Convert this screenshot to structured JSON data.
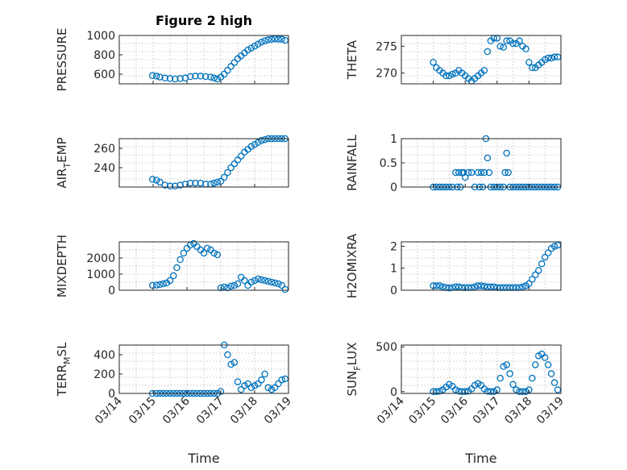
{
  "figure": {
    "title": "Figure 2 high"
  },
  "style": {
    "marker_color": "#0072BD"
  },
  "chart_data": [
    {
      "type": "scatter",
      "ylabel": "PRESSURE",
      "ylabel_sub": "",
      "ylim": [
        500,
        1000
      ],
      "yticks": [
        600,
        800,
        1000
      ],
      "ytick_labels": [
        "600",
        "800",
        "1000"
      ],
      "xlim": [
        0,
        5
      ],
      "xticks": [
        0,
        1,
        2,
        3,
        4,
        5
      ],
      "xtick_labels": [
        "03/14",
        "03/15",
        "03/16",
        "03/17",
        "03/18",
        "03/19"
      ],
      "xlabel": "",
      "grid": true,
      "x": [
        0.98,
        1.1,
        1.2,
        1.35,
        1.5,
        1.65,
        1.8,
        1.95,
        2.1,
        2.25,
        2.4,
        2.55,
        2.7,
        2.8,
        2.9,
        3.0,
        3.1,
        3.2,
        3.3,
        3.4,
        3.5,
        3.6,
        3.7,
        3.8,
        3.9,
        4.0,
        4.1,
        4.2,
        4.3,
        4.4,
        4.5,
        4.6,
        4.7,
        4.8,
        4.9
      ],
      "y": [
        585,
        580,
        570,
        560,
        555,
        550,
        555,
        560,
        575,
        580,
        580,
        575,
        570,
        560,
        550,
        570,
        600,
        640,
        680,
        720,
        760,
        790,
        820,
        850,
        870,
        890,
        910,
        930,
        945,
        955,
        960,
        965,
        960,
        960,
        950
      ]
    },
    {
      "type": "scatter",
      "ylabel": "AIR",
      "ylabel_sub": "T",
      "ylabel_rest": "EMP",
      "ylim": [
        220,
        270
      ],
      "yticks": [
        240,
        260
      ],
      "ytick_labels": [
        "240",
        "260"
      ],
      "xlim": [
        0,
        5
      ],
      "xticks": [
        0,
        1,
        2,
        3,
        4,
        5
      ],
      "xtick_labels": [
        "03/14",
        "03/15",
        "03/16",
        "03/17",
        "03/18",
        "03/19"
      ],
      "xlabel": "",
      "grid": true,
      "x": [
        0.98,
        1.1,
        1.2,
        1.35,
        1.5,
        1.65,
        1.8,
        1.95,
        2.1,
        2.25,
        2.4,
        2.55,
        2.7,
        2.8,
        2.9,
        3.0,
        3.1,
        3.2,
        3.3,
        3.4,
        3.5,
        3.6,
        3.7,
        3.8,
        3.9,
        4.0,
        4.1,
        4.2,
        4.3,
        4.4,
        4.5,
        4.6,
        4.7,
        4.8,
        4.9
      ],
      "y": [
        228,
        227,
        225,
        222,
        221,
        221,
        222,
        223,
        224,
        224,
        224,
        223,
        223,
        224,
        225,
        226,
        230,
        235,
        240,
        244,
        248,
        252,
        256,
        259,
        262,
        264,
        266,
        268,
        269,
        270,
        270,
        270,
        270,
        270,
        270
      ]
    },
    {
      "type": "scatter",
      "ylabel": "MIXDEPTH",
      "ylabel_sub": "",
      "ylim": [
        0,
        3000
      ],
      "yticks": [
        0,
        1000,
        2000
      ],
      "ytick_labels": [
        "0",
        "1000",
        "2000"
      ],
      "xlim": [
        0,
        5
      ],
      "xticks": [
        0,
        1,
        2,
        3,
        4,
        5
      ],
      "xtick_labels": [
        "03/14",
        "03/15",
        "03/16",
        "03/17",
        "03/18",
        "03/19"
      ],
      "xlabel": "",
      "grid": true,
      "x": [
        0.98,
        1.1,
        1.2,
        1.3,
        1.4,
        1.5,
        1.6,
        1.7,
        1.8,
        1.9,
        2.0,
        2.1,
        2.2,
        2.3,
        2.4,
        2.5,
        2.6,
        2.7,
        2.8,
        2.9,
        3.0,
        3.1,
        3.2,
        3.3,
        3.4,
        3.5,
        3.6,
        3.7,
        3.8,
        3.9,
        4.0,
        4.1,
        4.2,
        4.3,
        4.4,
        4.5,
        4.6,
        4.7,
        4.8,
        4.9
      ],
      "y": [
        300,
        320,
        350,
        400,
        450,
        600,
        900,
        1400,
        1900,
        2300,
        2600,
        2800,
        2900,
        2700,
        2500,
        2300,
        2600,
        2500,
        2300,
        2200,
        150,
        200,
        150,
        250,
        300,
        400,
        800,
        600,
        300,
        500,
        600,
        700,
        650,
        600,
        550,
        500,
        450,
        400,
        300,
        50
      ]
    },
    {
      "type": "scatter",
      "ylabel": "TERR",
      "ylabel_sub": "M",
      "ylabel_rest": "SL",
      "ylim": [
        0,
        500
      ],
      "yticks": [
        0,
        200,
        400
      ],
      "ytick_labels": [
        "0",
        "200",
        "400"
      ],
      "xlim": [
        0,
        5
      ],
      "xticks": [
        0,
        1,
        2,
        3,
        4,
        5
      ],
      "xtick_labels": [
        "03/14",
        "03/15",
        "03/16",
        "03/17",
        "03/18",
        "03/19"
      ],
      "xlabel": "Time",
      "grid": true,
      "x": [
        0.98,
        1.1,
        1.2,
        1.3,
        1.4,
        1.5,
        1.6,
        1.7,
        1.8,
        1.9,
        2.0,
        2.1,
        2.2,
        2.3,
        2.4,
        2.5,
        2.6,
        2.7,
        2.8,
        2.9,
        3.0,
        3.1,
        3.2,
        3.3,
        3.4,
        3.5,
        3.6,
        3.7,
        3.8,
        3.9,
        4.0,
        4.1,
        4.2,
        4.3,
        4.4,
        4.5,
        4.6,
        4.7,
        4.8,
        4.9
      ],
      "y": [
        0,
        0,
        0,
        0,
        0,
        0,
        0,
        0,
        0,
        0,
        0,
        0,
        0,
        0,
        0,
        0,
        0,
        0,
        0,
        0,
        20,
        500,
        400,
        300,
        320,
        120,
        40,
        80,
        100,
        60,
        80,
        100,
        140,
        200,
        60,
        40,
        60,
        100,
        140,
        150
      ]
    },
    {
      "type": "scatter",
      "ylabel": "THETA",
      "ylabel_sub": "",
      "ylim": [
        268,
        277
      ],
      "yticks": [
        270,
        275
      ],
      "ytick_labels": [
        "270",
        "275"
      ],
      "xlim": [
        0,
        5
      ],
      "xticks": [
        0,
        1,
        2,
        3,
        4,
        5
      ],
      "xtick_labels": [
        "03/14",
        "03/15",
        "03/16",
        "03/17",
        "03/18",
        "03/19"
      ],
      "xlabel": "",
      "grid": true,
      "x": [
        1.0,
        1.1,
        1.2,
        1.3,
        1.4,
        1.5,
        1.6,
        1.7,
        1.8,
        1.9,
        2.0,
        2.1,
        2.2,
        2.3,
        2.4,
        2.5,
        2.6,
        2.7,
        2.8,
        2.9,
        3.0,
        3.1,
        3.2,
        3.3,
        3.4,
        3.5,
        3.6,
        3.7,
        3.8,
        3.9,
        4.0,
        4.1,
        4.2,
        4.3,
        4.4,
        4.5,
        4.6,
        4.7,
        4.8,
        4.9
      ],
      "y": [
        272,
        271,
        270.5,
        270,
        269.5,
        269.5,
        269.8,
        270,
        270.5,
        270,
        269.5,
        269,
        268.5,
        269,
        269.5,
        270,
        270.5,
        274,
        276,
        276.5,
        276.5,
        275,
        274.8,
        276,
        276,
        275.5,
        275.5,
        276,
        275,
        274.5,
        272,
        271,
        271,
        271.5,
        272,
        272.5,
        272.8,
        272.8,
        273,
        273
      ]
    },
    {
      "type": "scatter",
      "ylabel": "RAINFALL",
      "ylabel_sub": "",
      "ylim": [
        0,
        1
      ],
      "yticks": [
        0,
        0.5,
        1
      ],
      "ytick_labels": [
        "0",
        "0.5",
        "1"
      ],
      "xlim": [
        0,
        5
      ],
      "xticks": [
        0,
        1,
        2,
        3,
        4,
        5
      ],
      "xtick_labels": [
        "03/14",
        "03/15",
        "03/16",
        "03/17",
        "03/18",
        "03/19"
      ],
      "xlabel": "",
      "grid": true,
      "x": [
        1.0,
        1.1,
        1.2,
        1.3,
        1.4,
        1.5,
        1.6,
        1.7,
        1.75,
        1.8,
        1.85,
        1.9,
        1.95,
        2.0,
        2.1,
        2.2,
        2.3,
        2.4,
        2.45,
        2.5,
        2.55,
        2.6,
        2.65,
        2.7,
        2.75,
        2.8,
        2.9,
        3.0,
        3.1,
        3.2,
        3.25,
        3.3,
        3.35,
        3.4,
        3.5,
        3.6,
        3.7,
        3.8,
        3.9,
        4.0,
        4.1,
        4.2,
        4.3,
        4.4,
        4.5,
        4.6,
        4.7,
        4.8,
        4.9
      ],
      "y": [
        0,
        0,
        0,
        0,
        0,
        0,
        0,
        0.3,
        0,
        0.3,
        0,
        0.3,
        0.3,
        0.2,
        0.3,
        0.3,
        0,
        0.3,
        0,
        0.3,
        0,
        0.3,
        1.0,
        0.6,
        0.3,
        0,
        0,
        0,
        0,
        0,
        0.3,
        0.7,
        0.3,
        0,
        0,
        0,
        0,
        0,
        0,
        0,
        0,
        0,
        0,
        0,
        0,
        0,
        0,
        0,
        0
      ]
    },
    {
      "type": "scatter",
      "ylabel": "H2OMIXRA",
      "ylabel_sub": "",
      "ylim": [
        0,
        2.2
      ],
      "yticks": [
        0,
        1,
        2
      ],
      "ytick_labels": [
        "0",
        "1",
        "2"
      ],
      "xlim": [
        0,
        5
      ],
      "xticks": [
        0,
        1,
        2,
        3,
        4,
        5
      ],
      "xtick_labels": [
        "03/14",
        "03/15",
        "03/16",
        "03/17",
        "03/18",
        "03/19"
      ],
      "xlabel": "",
      "grid": true,
      "x": [
        1.0,
        1.1,
        1.2,
        1.3,
        1.4,
        1.5,
        1.6,
        1.7,
        1.8,
        1.9,
        2.0,
        2.1,
        2.2,
        2.3,
        2.4,
        2.5,
        2.6,
        2.7,
        2.8,
        2.9,
        3.0,
        3.1,
        3.2,
        3.3,
        3.4,
        3.5,
        3.6,
        3.7,
        3.8,
        3.9,
        4.0,
        4.1,
        4.2,
        4.3,
        4.4,
        4.5,
        4.6,
        4.7,
        4.8,
        4.9
      ],
      "y": [
        0.2,
        0.2,
        0.2,
        0.15,
        0.12,
        0.1,
        0.12,
        0.15,
        0.15,
        0.12,
        0.12,
        0.12,
        0.12,
        0.15,
        0.2,
        0.2,
        0.18,
        0.15,
        0.15,
        0.15,
        0.12,
        0.12,
        0.12,
        0.12,
        0.12,
        0.12,
        0.12,
        0.12,
        0.15,
        0.2,
        0.3,
        0.5,
        0.7,
        0.9,
        1.2,
        1.5,
        1.7,
        1.9,
        2.0,
        2.05
      ]
    },
    {
      "type": "scatter",
      "ylabel": "SUN",
      "ylabel_sub": "F",
      "ylabel_rest": "LUX",
      "ylim": [
        -20,
        520
      ],
      "yticks": [
        0,
        500
      ],
      "ytick_labels": [
        "0",
        "500"
      ],
      "xlim": [
        0,
        5
      ],
      "xticks": [
        0,
        1,
        2,
        3,
        4,
        5
      ],
      "xtick_labels": [
        "03/14",
        "03/15",
        "03/16",
        "03/17",
        "03/18",
        "03/19"
      ],
      "xlabel": "Time",
      "grid": true,
      "x": [
        1.0,
        1.1,
        1.2,
        1.3,
        1.4,
        1.5,
        1.6,
        1.7,
        1.8,
        1.9,
        2.0,
        2.1,
        2.2,
        2.3,
        2.4,
        2.5,
        2.6,
        2.7,
        2.8,
        2.9,
        3.0,
        3.1,
        3.2,
        3.3,
        3.4,
        3.5,
        3.6,
        3.7,
        3.8,
        3.9,
        4.0,
        4.1,
        4.2,
        4.3,
        4.4,
        4.5,
        4.6,
        4.7,
        4.8,
        4.9
      ],
      "y": [
        0,
        0,
        5,
        20,
        50,
        80,
        60,
        20,
        5,
        0,
        0,
        5,
        30,
        70,
        90,
        70,
        30,
        5,
        0,
        0,
        20,
        150,
        280,
        300,
        200,
        80,
        20,
        0,
        0,
        0,
        20,
        150,
        300,
        400,
        420,
        380,
        300,
        200,
        100,
        20
      ]
    }
  ]
}
